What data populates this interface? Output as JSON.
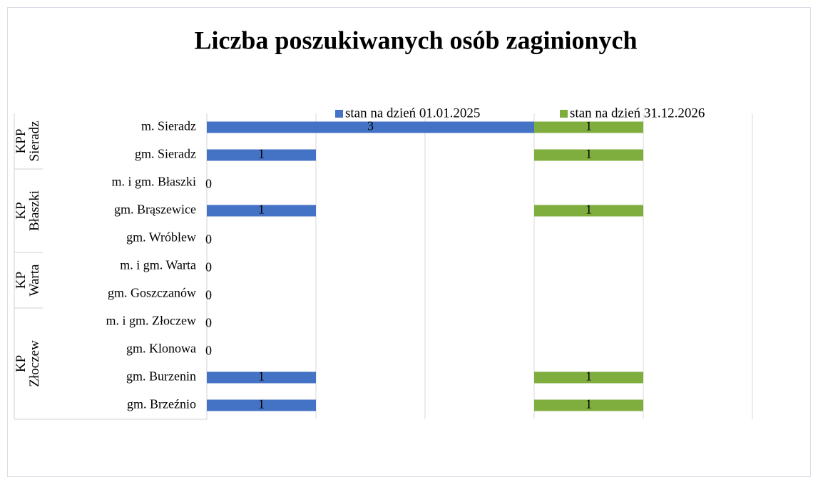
{
  "chart_data": {
    "type": "bar",
    "orientation": "horizontal",
    "title": "Liczba poszukiwanych osób zaginionych",
    "groups": [
      {
        "lines": [
          "KPP",
          "Sieradz"
        ],
        "categories": [
          "m. Sieradz",
          "gm. Sieradz"
        ]
      },
      {
        "lines": [
          "KP",
          "Błaszki"
        ],
        "categories": [
          "m. i gm. Błaszki",
          "gm. Brąszewice",
          "gm. Wróblew"
        ]
      },
      {
        "lines": [
          "KP",
          "Warta"
        ],
        "categories": [
          "m. i gm. Warta",
          "gm. Goszczanów"
        ]
      },
      {
        "lines": [
          "KP",
          "Złoczew"
        ],
        "categories": [
          "m. i gm. Złoczew",
          "gm. Klonowa",
          "gm. Burzenin",
          "gm. Brzeźnio"
        ]
      }
    ],
    "series": [
      {
        "name": "stan na dzień 01.01.2025",
        "color": "#4472c4",
        "values": [
          3,
          1,
          0,
          1,
          0,
          0,
          0,
          0,
          0,
          1,
          1
        ]
      },
      {
        "name": "stan na dzień 31.12.2026",
        "color": "#7fae3f",
        "values": [
          1,
          1,
          0,
          1,
          0,
          0,
          0,
          0,
          0,
          1,
          1
        ]
      }
    ],
    "xlim": [
      0,
      5
    ],
    "xticks": [
      0,
      1,
      2,
      3,
      4,
      5
    ],
    "grid": true,
    "legend": "top"
  }
}
